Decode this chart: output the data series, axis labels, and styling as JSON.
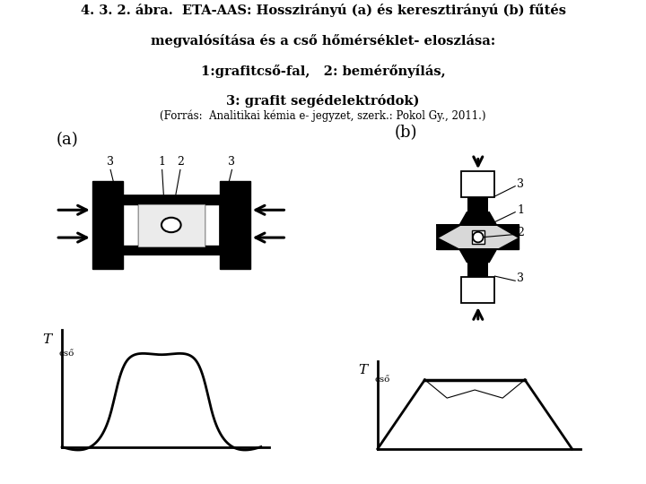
{
  "title_line1": "4. 3. 2. ábra.  ETA-AAS: Hosszirányú (a) és keresztirányú (b) fűtés",
  "title_line2": "megvalósítása és a cső hőmérséklet- eloszlása:",
  "title_line3": "1:grafitcső-fal,   2: bemérőnyílás,",
  "title_line4": "3: grafit segédelektródok)",
  "source_line": "(Forrás:  Analitikai kémia e- jegyzet, szerk.: Pokol Gy., 2011.)",
  "label_a": "(a)",
  "label_b": "(b)",
  "bg_color": "#ffffff",
  "fg_color": "#000000",
  "title_fontsize": 10.5,
  "source_fontsize": 8.5,
  "label_fontsize": 13
}
